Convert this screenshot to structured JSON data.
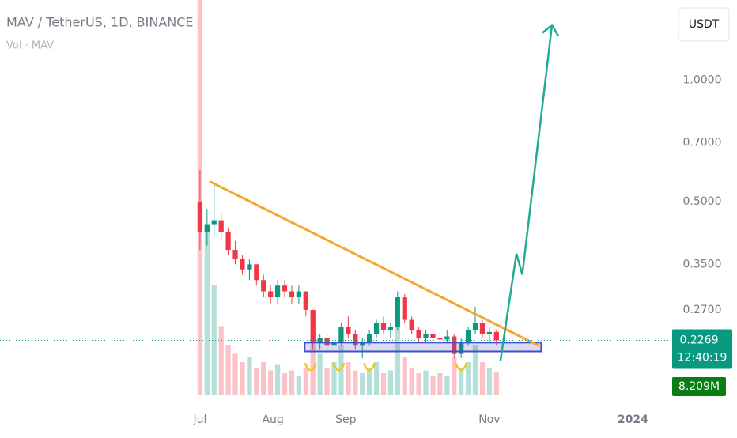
{
  "chart_data": {
    "type": "candlestick",
    "title": "MAV / TetherUS, 1D, BINANCE",
    "subtitle": "Vol · MAV",
    "currency": "USDT",
    "log_scale": true,
    "up_color": "#089981",
    "down_color": "#f23645",
    "x": [
      0,
      3,
      6,
      9,
      12,
      15,
      18,
      21,
      24,
      27,
      30,
      33,
      36,
      39,
      42,
      45,
      48,
      51,
      54,
      57,
      60,
      63,
      66,
      69,
      72,
      75,
      78,
      81,
      84,
      87,
      90,
      93,
      96,
      99,
      102,
      105,
      108,
      111,
      114,
      117,
      120,
      123,
      126
    ],
    "open": [
      0.5,
      0.42,
      0.44,
      0.45,
      0.42,
      0.38,
      0.36,
      0.34,
      0.35,
      0.32,
      0.3,
      0.29,
      0.31,
      0.3,
      0.29,
      0.3,
      0.27,
      0.225,
      0.23,
      0.22,
      0.225,
      0.245,
      0.235,
      0.22,
      0.225,
      0.235,
      0.25,
      0.24,
      0.245,
      0.29,
      0.255,
      0.24,
      0.23,
      0.235,
      0.23,
      0.228,
      0.232,
      0.21,
      0.225,
      0.24,
      0.25,
      0.235,
      0.238
    ],
    "high": [
      0.6,
      0.48,
      0.55,
      0.47,
      0.43,
      0.4,
      0.37,
      0.36,
      0.35,
      0.33,
      0.31,
      0.32,
      0.32,
      0.31,
      0.31,
      0.3,
      0.27,
      0.235,
      0.235,
      0.23,
      0.25,
      0.26,
      0.24,
      0.23,
      0.24,
      0.255,
      0.26,
      0.25,
      0.3,
      0.295,
      0.26,
      0.245,
      0.24,
      0.24,
      0.235,
      0.24,
      0.235,
      0.23,
      0.245,
      0.275,
      0.255,
      0.245,
      0.24
    ],
    "low": [
      0.38,
      0.39,
      0.41,
      0.4,
      0.37,
      0.35,
      0.33,
      0.32,
      0.31,
      0.29,
      0.28,
      0.28,
      0.29,
      0.28,
      0.28,
      0.26,
      0.215,
      0.215,
      0.21,
      0.205,
      0.22,
      0.23,
      0.215,
      0.205,
      0.22,
      0.23,
      0.235,
      0.23,
      0.24,
      0.25,
      0.235,
      0.225,
      0.225,
      0.225,
      0.22,
      0.225,
      0.205,
      0.205,
      0.22,
      0.235,
      0.23,
      0.225,
      0.22
    ],
    "close": [
      0.42,
      0.44,
      0.45,
      0.42,
      0.38,
      0.36,
      0.34,
      0.35,
      0.32,
      0.3,
      0.29,
      0.31,
      0.3,
      0.29,
      0.3,
      0.27,
      0.225,
      0.23,
      0.22,
      0.225,
      0.245,
      0.235,
      0.22,
      0.225,
      0.235,
      0.25,
      0.24,
      0.245,
      0.29,
      0.255,
      0.24,
      0.23,
      0.235,
      0.23,
      0.228,
      0.232,
      0.21,
      0.225,
      0.24,
      0.25,
      0.235,
      0.238,
      0.2269
    ],
    "volume": [
      300000000,
      60000000,
      40000000,
      25000000,
      18000000,
      15000000,
      12000000,
      14000000,
      10000000,
      12000000,
      9000000,
      11000000,
      8000000,
      9000000,
      7000000,
      10000000,
      30000000,
      15000000,
      10000000,
      12000000,
      18000000,
      12000000,
      9000000,
      8000000,
      10000000,
      12000000,
      8000000,
      9000000,
      25000000,
      14000000,
      10000000,
      8000000,
      9000000,
      7000000,
      8000000,
      7000000,
      14000000,
      10000000,
      12000000,
      18000000,
      12000000,
      10000000,
      8209000
    ],
    "volume_lim": [
      0,
      40000000
    ],
    "last_price": {
      "value": 0.2269,
      "label": "0.2269"
    },
    "countdown": "12:40:19",
    "last_volume": {
      "value": 8209000,
      "label": "8.209M"
    },
    "xlim": [
      -85,
      199
    ],
    "xticks": [
      {
        "value": 0,
        "label": "Jul"
      },
      {
        "value": 31,
        "label": "Aug"
      },
      {
        "value": 62,
        "label": "Sep"
      },
      {
        "value": 123,
        "label": "Nov"
      },
      {
        "value": 184,
        "label": "2024"
      }
    ],
    "ylim": [
      0.155,
      1.58
    ],
    "yticks": [
      {
        "value": 1,
        "label": "1.0000"
      },
      {
        "value": 0.7,
        "label": "0.7000"
      },
      {
        "value": 0.5,
        "label": "0.5000"
      },
      {
        "value": 0.35,
        "label": "0.3500"
      },
      {
        "value": 0.27,
        "label": "0.2700"
      }
    ],
    "trendline": {
      "color": "#f5a62e",
      "points": [
        [
          4,
          0.562
        ],
        [
          144,
          0.22
        ]
      ]
    },
    "zone": {
      "color": "#3f51c8",
      "x": [
        44.5,
        145
      ],
      "y": [
        0.213,
        0.224
      ]
    },
    "arrow": {
      "color": "#22ab94",
      "points": [
        [
          127.7,
          0.202
        ],
        [
          134.5,
          0.372
        ],
        [
          137,
          0.33
        ],
        [
          149.6,
          1.37
        ]
      ]
    },
    "smiles": {
      "color": "#f5c518",
      "x": [
        47,
        59,
        72,
        111
      ],
      "y": [
        0.194,
        0.194,
        0.194,
        0.194
      ]
    }
  }
}
